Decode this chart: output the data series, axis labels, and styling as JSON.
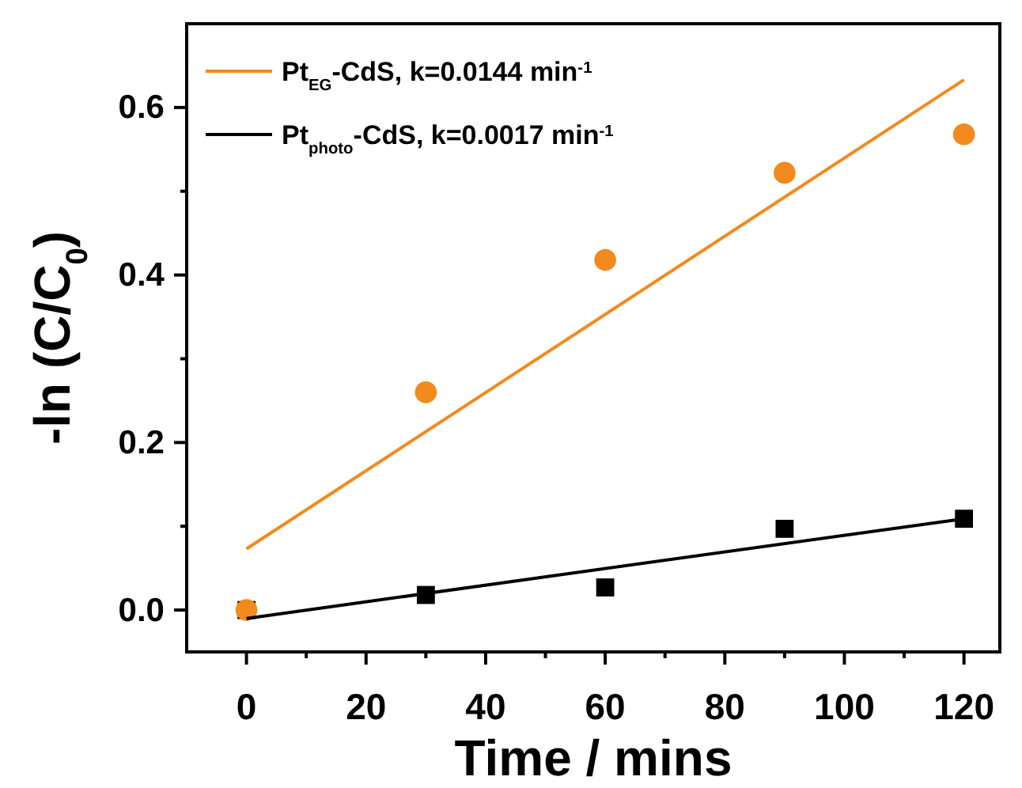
{
  "chart_data": {
    "type": "scatter",
    "xlabel": "Time / mins",
    "ylabel": "-ln (C/C$_{0}$)",
    "xlim": [
      -10,
      126
    ],
    "xticks": [
      0,
      {
        "value": 10,
        "label": null
      },
      20,
      {
        "value": 30,
        "label": null
      },
      40,
      {
        "value": 50,
        "label": null
      },
      60,
      {
        "value": 70,
        "label": null
      },
      80,
      {
        "value": 90,
        "label": null
      },
      100,
      {
        "value": 110,
        "label": null
      },
      120
    ],
    "ylim": [
      -0.05,
      0.7
    ],
    "yticks": [
      {
        "value": 0,
        "label": "0.0"
      },
      {
        "value": 0.1,
        "label": null
      },
      0.2,
      {
        "value": 0.3,
        "label": null
      },
      0.4,
      {
        "value": 0.5,
        "label": null
      },
      0.6
    ],
    "legend": "top left",
    "grid": false,
    "series": [
      {
        "marker": "square",
        "color": "#000000",
        "x": [
          0,
          30,
          60,
          90,
          120
        ],
        "values": [
          0,
          0.018,
          0.027,
          0.097,
          0.109
        ]
      },
      {
        "marker": "circle",
        "color": "#f28a1e",
        "x": [
          0,
          30,
          60,
          90,
          120
        ],
        "values": [
          0,
          0.26,
          0.418,
          0.522,
          0.568
        ]
      },
      {
        "type": "line",
        "name": "Pt$_{EG}$-CdS, k=0.0144 min$^{-1}$",
        "color": "#f28a1e",
        "x": [
          0,
          120
        ],
        "values": [
          0.073,
          0.633
        ]
      },
      {
        "type": "line",
        "name": "Pt$_{photo}$-CdS, k=0.0017 min$^{-1}$",
        "color": "#000000",
        "x": [
          0,
          120
        ],
        "values": [
          -0.01,
          0.109
        ]
      }
    ]
  }
}
